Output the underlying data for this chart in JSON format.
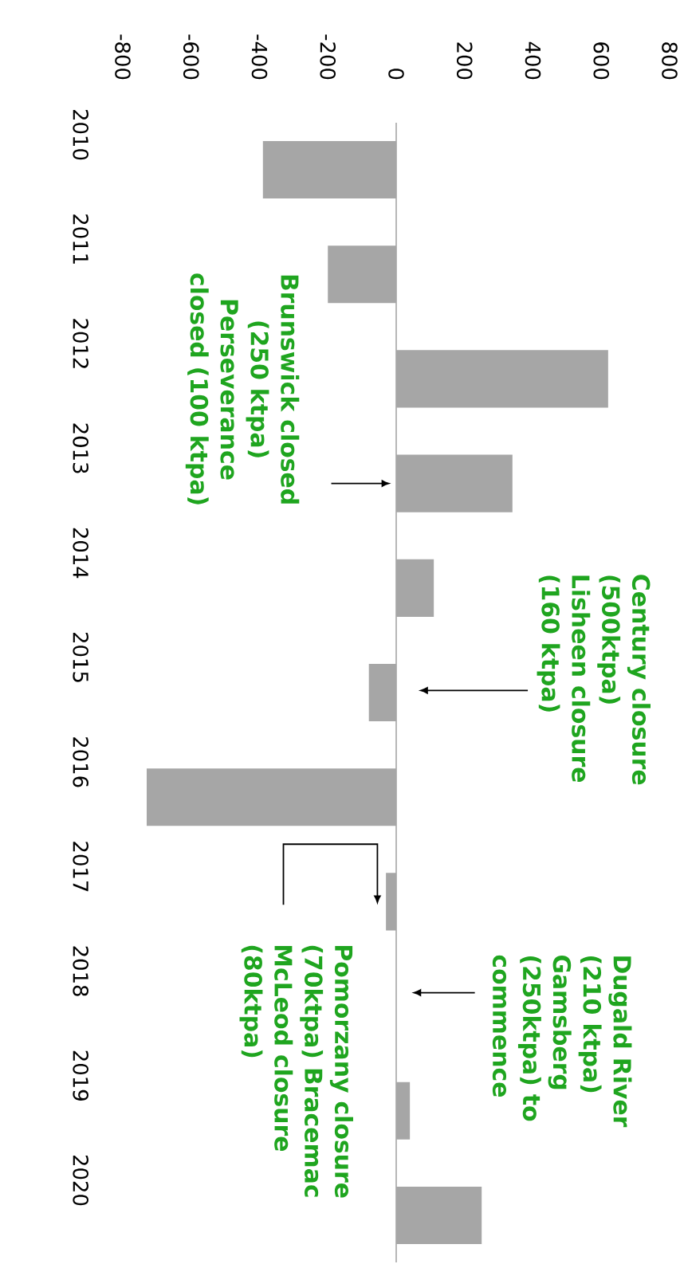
{
  "chart_data": {
    "type": "bar",
    "orientation": "horizontal",
    "categories": [
      "2010",
      "2011",
      "2012",
      "2013",
      "2014",
      "2015",
      "2016",
      "2017",
      "2018",
      "2019",
      "2020"
    ],
    "values": [
      -390,
      -200,
      620,
      340,
      110,
      -80,
      -730,
      -30,
      null,
      40,
      250
    ],
    "color": "#a6a6a6",
    "xlim": [
      -800,
      800
    ],
    "xticks": [
      -800,
      -600,
      -400,
      -200,
      0,
      200,
      400,
      600,
      800
    ],
    "annotations": [
      "Brunswick closed (250 ktpa) Perseverance closed (100 ktpa)",
      "Century closure (500ktpa) Lisheen closure (160 ktpa)",
      "Pomorzany closure (70ktpa) Bracemac McLeod closure (80ktpa)",
      "Dugald River (210 ktpa) Gamsberg (250ktpa) to commence"
    ]
  }
}
